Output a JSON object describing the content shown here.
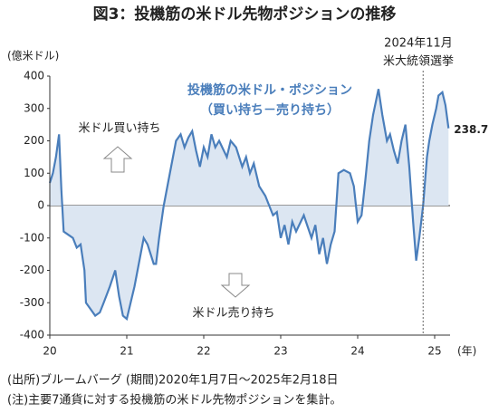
{
  "chart_data": {
    "type": "area",
    "title": "図3：投機筋の米ドル先物ポジションの推移",
    "y_axis_label": "(億米ドル)",
    "x_axis_label": "(年)",
    "xlim": [
      20,
      25.2
    ],
    "xticks": [
      20,
      21,
      22,
      23,
      24,
      25
    ],
    "ylim": [
      -400,
      400
    ],
    "yticks": [
      -400,
      -300,
      -200,
      -100,
      0,
      100,
      200,
      300,
      400
    ],
    "series": [
      {
        "name": "投機筋の米ドル・ポジション",
        "subname": "（買い持ち－売り持ち）",
        "color": "#4a7ebb",
        "fill": "#dce6f2",
        "x": [
          20.0,
          20.04,
          20.08,
          20.12,
          20.15,
          20.18,
          20.24,
          20.3,
          20.35,
          20.4,
          20.45,
          20.47,
          20.53,
          20.59,
          20.65,
          20.7,
          20.78,
          20.85,
          20.9,
          20.95,
          21.0,
          21.05,
          21.1,
          21.18,
          21.22,
          21.27,
          21.35,
          21.38,
          21.42,
          21.48,
          21.52,
          21.56,
          21.6,
          21.64,
          21.7,
          21.75,
          21.8,
          21.85,
          21.9,
          21.95,
          22.0,
          22.05,
          22.1,
          22.15,
          22.2,
          22.3,
          22.35,
          22.42,
          22.5,
          22.55,
          22.6,
          22.65,
          22.72,
          22.8,
          22.9,
          22.95,
          23.0,
          23.05,
          23.1,
          23.15,
          23.2,
          23.3,
          23.4,
          23.45,
          23.5,
          23.55,
          23.6,
          23.65,
          23.7,
          23.75,
          23.82,
          23.9,
          23.95,
          24.0,
          24.05,
          24.1,
          24.15,
          24.2,
          24.27,
          24.32,
          24.38,
          24.42,
          24.47,
          24.52,
          24.57,
          24.62,
          24.67,
          24.72,
          24.76,
          24.8,
          24.85,
          24.9,
          24.93,
          24.97,
          25.02,
          25.05,
          25.1,
          25.14,
          25.18
        ],
        "values": [
          70,
          100,
          150,
          220,
          50,
          -80,
          -90,
          -100,
          -130,
          -120,
          -200,
          -300,
          -320,
          -340,
          -330,
          -300,
          -250,
          -200,
          -280,
          -340,
          -350,
          -300,
          -250,
          -150,
          -100,
          -120,
          -180,
          -180,
          -100,
          0,
          50,
          100,
          150,
          200,
          220,
          180,
          210,
          230,
          170,
          120,
          180,
          150,
          220,
          180,
          200,
          150,
          200,
          180,
          120,
          150,
          100,
          130,
          60,
          30,
          -30,
          -20,
          -100,
          -60,
          -120,
          -50,
          -80,
          -30,
          -100,
          -60,
          -150,
          -100,
          -180,
          -120,
          -80,
          100,
          110,
          100,
          60,
          -50,
          -30,
          80,
          200,
          280,
          360,
          280,
          200,
          220,
          170,
          130,
          200,
          250,
          120,
          -50,
          -170,
          -100,
          0,
          150,
          200,
          250,
          300,
          340,
          350,
          310,
          238.7
        ]
      }
    ],
    "annotations": {
      "buy": "米ドル買い持ち",
      "sell": "米ドル売り持ち",
      "event_line": {
        "x": 24.85,
        "label1": "2024年11月",
        "label2": "米大統領選挙"
      }
    },
    "notes": [
      "(出所)ブルームバーグ  (期間)2020年1月7日～2025年2月18日",
      "(注)主要7通貨に対する投機筋の米ドル先物ポジションを集計。"
    ]
  }
}
